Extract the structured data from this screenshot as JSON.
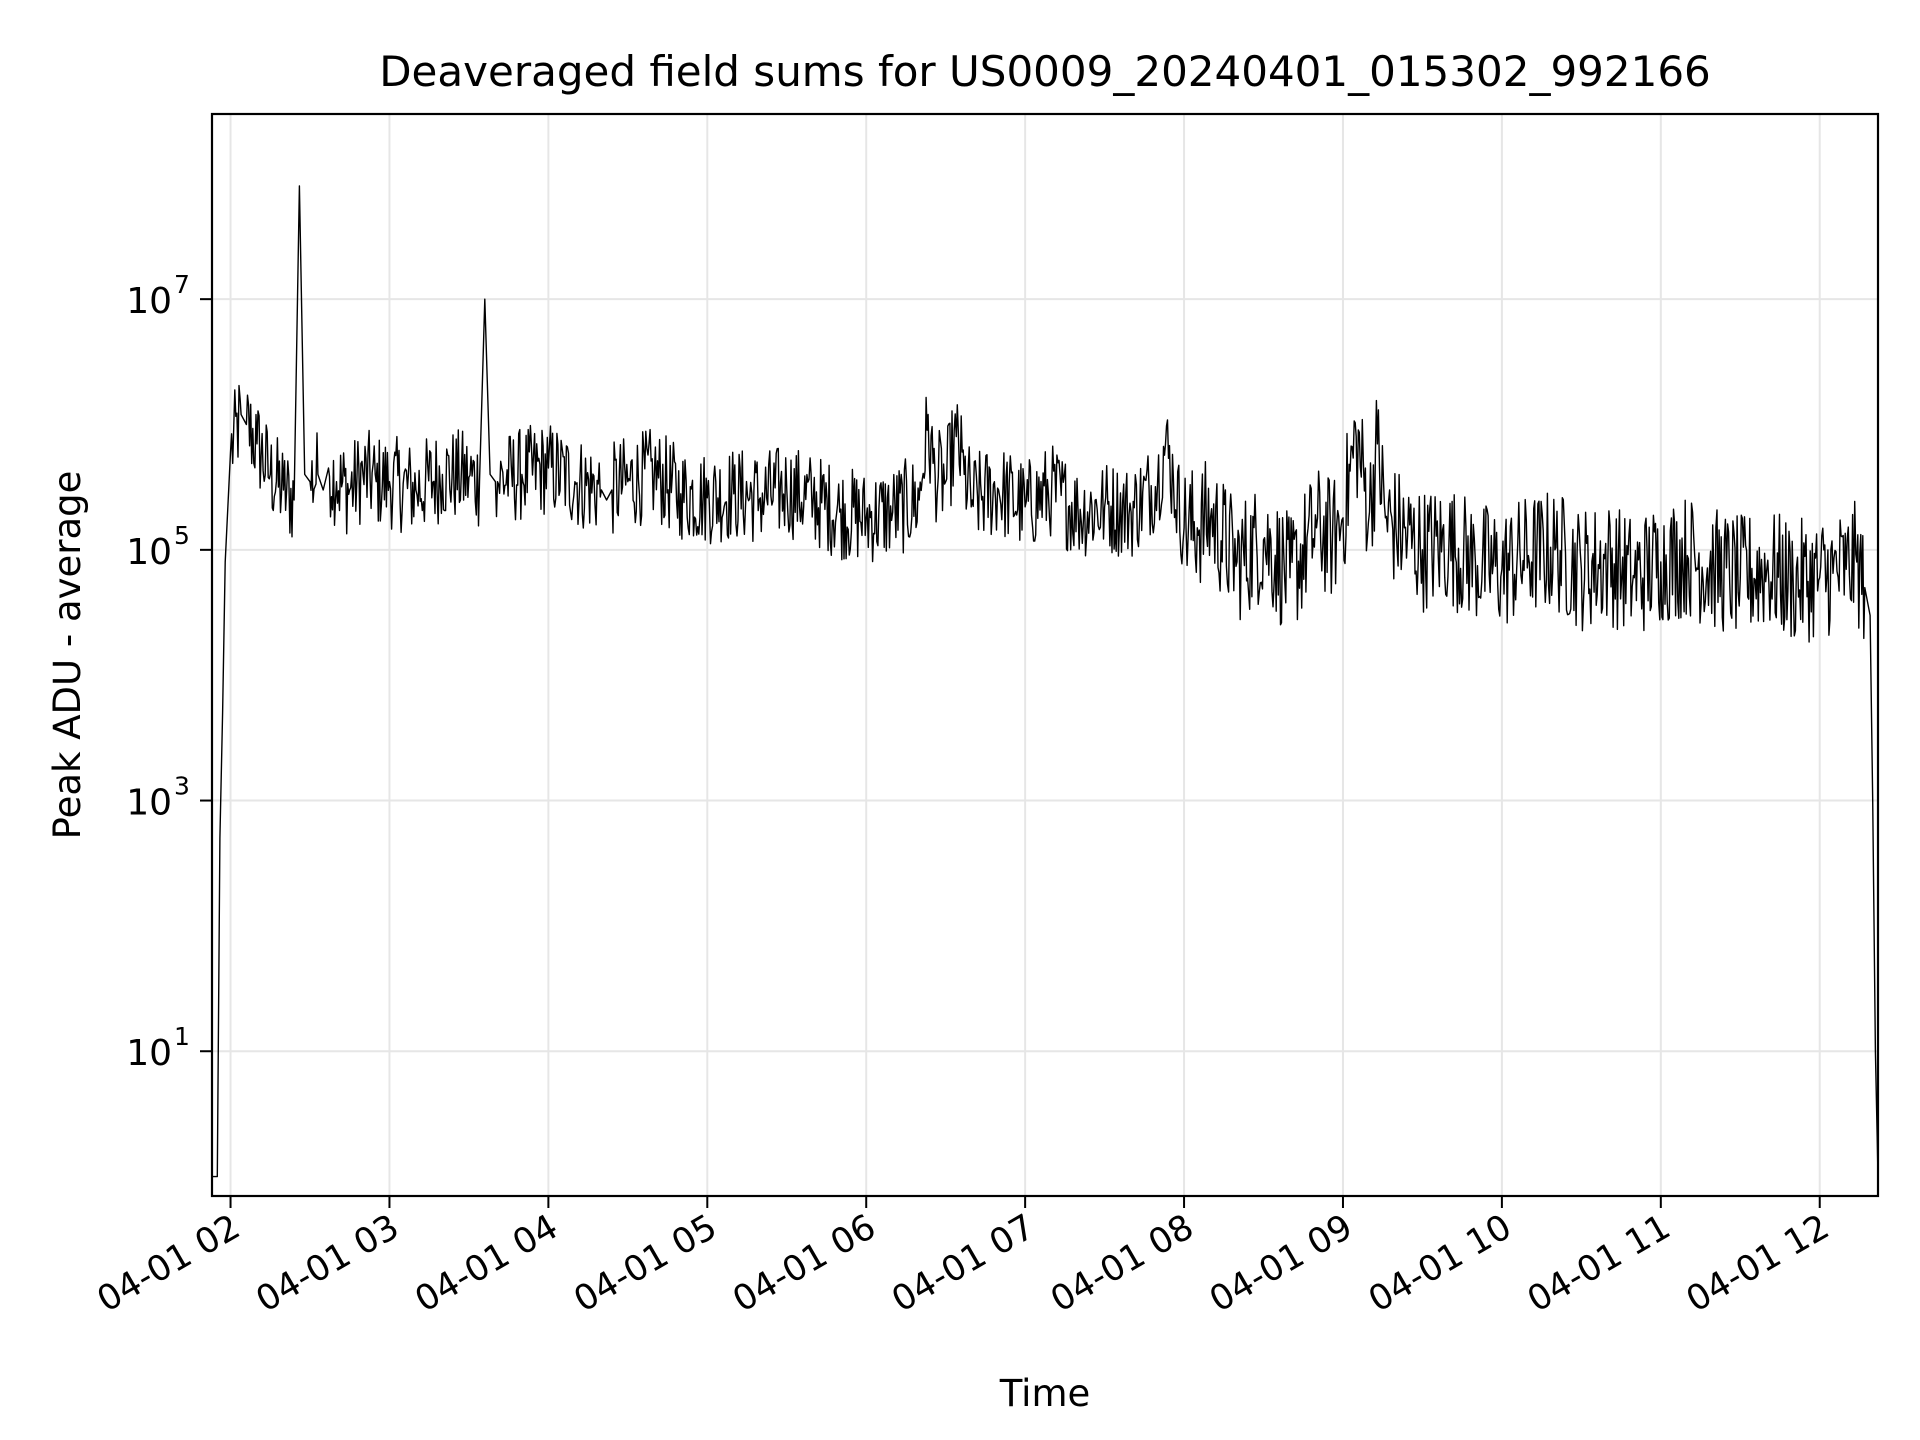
{
  "chart_data": {
    "type": "line",
    "title": "Deaveraged field sums for US0009_20240401_015302_992166",
    "xlabel": "Time",
    "ylabel": "Peak ADU - average",
    "xscale": "time",
    "yscale": "log",
    "xlim": [
      "2024-04-01 01:53",
      "2024-04-01 12:22"
    ],
    "ylim": [
      0.7,
      300000000
    ],
    "grid": true,
    "legend": "none",
    "x_ticks": [
      "04-01 02",
      "04-01 03",
      "04-01 04",
      "04-01 05",
      "04-01 06",
      "04-01 07",
      "04-01 08",
      "04-01 09",
      "04-01 10",
      "04-01 11",
      "04-01 12"
    ],
    "x_tick_times": [
      "2024-04-01 02:00",
      "2024-04-01 03:00",
      "2024-04-01 04:00",
      "2024-04-01 05:00",
      "2024-04-01 06:00",
      "2024-04-01 07:00",
      "2024-04-01 08:00",
      "2024-04-01 09:00",
      "2024-04-01 10:00",
      "2024-04-01 11:00",
      "2024-04-01 12:00"
    ],
    "y_ticks": [
      {
        "base": "10",
        "exp": "1",
        "value": 10
      },
      {
        "base": "10",
        "exp": "3",
        "value": 1000
      },
      {
        "base": "10",
        "exp": "5",
        "value": 100000
      },
      {
        "base": "10",
        "exp": "7",
        "value": 10000000
      }
    ],
    "line_color": "#000000",
    "series": [
      {
        "x": [
          "2024-04-01 01:53",
          "2024-04-01 01:55",
          "2024-04-01 01:56",
          "2024-04-01 01:57",
          "2024-04-01 01:58",
          "2024-04-01 02:00",
          "2024-04-01 02:04",
          "2024-04-01 02:06",
          "2024-04-01 02:10",
          "2024-04-01 02:15",
          "2024-04-01 02:20",
          "2024-04-01 02:24",
          "2024-04-01 02:26",
          "2024-04-01 02:28",
          "2024-04-01 02:30",
          "2024-04-01 02:33",
          "2024-04-01 02:35",
          "2024-04-01 02:37",
          "2024-04-01 02:40",
          "2024-04-01 02:45",
          "2024-04-01 02:50",
          "2024-04-01 02:55",
          "2024-04-01 03:00",
          "2024-04-01 03:10",
          "2024-04-01 03:20",
          "2024-04-01 03:30",
          "2024-04-01 03:34",
          "2024-04-01 03:36",
          "2024-04-01 03:38",
          "2024-04-01 03:40",
          "2024-04-01 03:50",
          "2024-04-01 04:00",
          "2024-04-01 04:10",
          "2024-04-01 04:20",
          "2024-04-01 04:22",
          "2024-04-01 04:24",
          "2024-04-01 04:30",
          "2024-04-01 04:40",
          "2024-04-01 04:50",
          "2024-04-01 05:00",
          "2024-04-01 05:10",
          "2024-04-01 05:20",
          "2024-04-01 05:30",
          "2024-04-01 05:40",
          "2024-04-01 05:50",
          "2024-04-01 06:00",
          "2024-04-01 06:10",
          "2024-04-01 06:20",
          "2024-04-01 06:23",
          "2024-04-01 06:26",
          "2024-04-01 06:30",
          "2024-04-01 06:34",
          "2024-04-01 06:37",
          "2024-04-01 06:40",
          "2024-04-01 06:50",
          "2024-04-01 07:00",
          "2024-04-01 07:10",
          "2024-04-01 07:20",
          "2024-04-01 07:30",
          "2024-04-01 07:40",
          "2024-04-01 07:50",
          "2024-04-01 07:53",
          "2024-04-01 07:56",
          "2024-04-01 08:00",
          "2024-04-01 08:05",
          "2024-04-01 08:10",
          "2024-04-01 08:20",
          "2024-04-01 08:30",
          "2024-04-01 08:40",
          "2024-04-01 08:50",
          "2024-04-01 08:56",
          "2024-04-01 09:00",
          "2024-04-01 09:05",
          "2024-04-01 09:10",
          "2024-04-01 09:13",
          "2024-04-01 09:16",
          "2024-04-01 09:20",
          "2024-04-01 09:30",
          "2024-04-01 09:40",
          "2024-04-01 09:50",
          "2024-04-01 10:00",
          "2024-04-01 10:10",
          "2024-04-01 10:20",
          "2024-04-01 10:30",
          "2024-04-01 10:40",
          "2024-04-01 10:50",
          "2024-04-01 11:00",
          "2024-04-01 11:10",
          "2024-04-01 11:20",
          "2024-04-01 11:30",
          "2024-04-01 11:40",
          "2024-04-01 11:50",
          "2024-04-01 12:00",
          "2024-04-01 12:05",
          "2024-04-01 12:10",
          "2024-04-01 12:14",
          "2024-04-01 12:17",
          "2024-04-01 12:19",
          "2024-04-01 12:20",
          "2024-04-01 12:21",
          "2024-04-01 12:22"
        ],
        "y": [
          1,
          1,
          500,
          5000,
          80000,
          600000,
          1200000,
          1000000,
          700000,
          400000,
          300000,
          250000,
          80000000,
          400000,
          350000,
          400000,
          300000,
          450000,
          350000,
          300000,
          400000,
          350000,
          350000,
          300000,
          400000,
          380000,
          350000,
          10000000,
          400000,
          350000,
          400000,
          450000,
          350000,
          300000,
          250000,
          300000,
          350000,
          400000,
          280000,
          260000,
          280000,
          260000,
          300000,
          250000,
          200000,
          180000,
          200000,
          250000,
          900000,
          400000,
          350000,
          800000,
          400000,
          250000,
          300000,
          220000,
          300000,
          200000,
          220000,
          200000,
          350000,
          700000,
          350000,
          150000,
          150000,
          180000,
          80000,
          120000,
          60000,
          150000,
          120000,
          180000,
          800000,
          200000,
          700000,
          180000,
          150000,
          100000,
          110000,
          80000,
          70000,
          90000,
          100000,
          70000,
          80000,
          60000,
          80000,
          90000,
          70000,
          60000,
          70000,
          55000,
          60000,
          65000,
          70000,
          80000,
          50000,
          30000,
          1000,
          10,
          1
        ]
      }
    ]
  }
}
